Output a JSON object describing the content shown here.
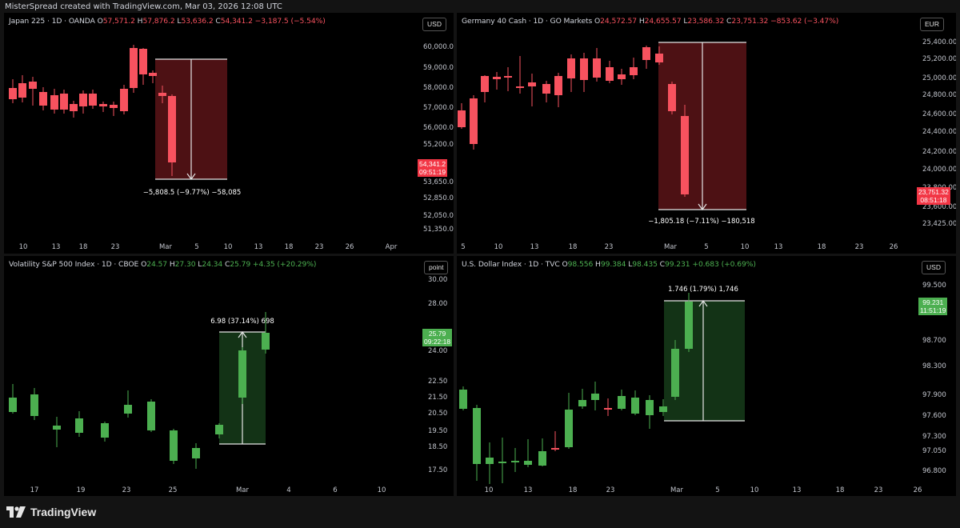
{
  "header": {
    "caption": "MisterSpread created with TradingView.com, Mar 03, 2026 12:08 UTC"
  },
  "footer": {
    "brand": "TradingView",
    "logo_icon": "tradingview-logo-icon"
  },
  "colors": {
    "up": "#4caf50",
    "down": "#f7525f",
    "bg": "#000000",
    "short_zone": "#5a1418",
    "long_zone": "#163c1a"
  },
  "panels": [
    {
      "symbol": "Japan 225 · 1D · OANDA",
      "ohlc": [
        {
          "k": "O",
          "v": "57,571.2",
          "c": "neg"
        },
        {
          "k": "H",
          "v": "57,876.2",
          "c": "neg"
        },
        {
          "k": "L",
          "v": "53,636.2",
          "c": "neg"
        },
        {
          "k": "C",
          "v": "54,341.2",
          "c": "neg"
        }
      ],
      "change": "−3,187.5 (−5.54%)",
      "change_class": "neg",
      "currency": "USD",
      "last_price": "54,341.2",
      "countdown": "09:51:19",
      "y_ticks": [
        "60,000.0",
        "59,000.0",
        "58,000.0",
        "57,000.0",
        "56,000.0",
        "55,200.0",
        "53,650.0",
        "52,850.0",
        "52,050.0",
        "51,350.0"
      ],
      "x_ticks": [
        "10",
        "13",
        "18",
        "23",
        "Mar",
        "5",
        "10",
        "13",
        "18",
        "23",
        "26",
        "Apr"
      ],
      "measure_label": "−5,808.5 (−9.77%) −58,085"
    },
    {
      "symbol": "Germany 40 Cash · 1D · GO Markets",
      "ohlc": [
        {
          "k": "O",
          "v": "24,572.57",
          "c": "neg"
        },
        {
          "k": "H",
          "v": "24,655.57",
          "c": "neg"
        },
        {
          "k": "L",
          "v": "23,586.32",
          "c": "neg"
        },
        {
          "k": "C",
          "v": "23,751.32",
          "c": "neg"
        }
      ],
      "change": "−853.62 (−3.47%)",
      "change_class": "neg",
      "currency": "EUR",
      "last_price": "23,751.32",
      "countdown": "08:51:18",
      "y_ticks": [
        "25,400.00",
        "25,200.00",
        "25,000.00",
        "24,800.00",
        "24,600.00",
        "24,400.00",
        "24,200.00",
        "24,000.00",
        "23,800.00",
        "23,600.00",
        "23,425.00"
      ],
      "x_ticks": [
        "5",
        "10",
        "13",
        "18",
        "23",
        "Mar",
        "5",
        "10",
        "13",
        "18",
        "23",
        "26"
      ],
      "measure_label": "−1,805.18 (−7.11%) −180,518"
    },
    {
      "symbol": "Volatility S&P 500 Index · 1D · CBOE",
      "ohlc": [
        {
          "k": "O",
          "v": "24.57",
          "c": "pos"
        },
        {
          "k": "H",
          "v": "27.30",
          "c": "pos"
        },
        {
          "k": "L",
          "v": "24.34",
          "c": "pos"
        },
        {
          "k": "C",
          "v": "25.79",
          "c": "pos"
        }
      ],
      "change": "+4.35 (+20.29%)",
      "change_class": "pos",
      "currency": "point",
      "last_price": "25.79",
      "countdown": "09:22:18",
      "y_ticks": [
        "30.00",
        "28.00",
        "24.00",
        "22.50",
        "21.50",
        "20.50",
        "19.50",
        "18.50",
        "17.50"
      ],
      "x_ticks": [
        "17",
        "19",
        "23",
        "25",
        "Mar",
        "4",
        "6",
        "10"
      ],
      "measure_label": "6.98 (37.14%) 698"
    },
    {
      "symbol": "U.S. Dollar Index · 1D · TVC",
      "ohlc": [
        {
          "k": "O",
          "v": "98.556",
          "c": "pos"
        },
        {
          "k": "H",
          "v": "99.384",
          "c": "pos"
        },
        {
          "k": "L",
          "v": "98.435",
          "c": "pos"
        },
        {
          "k": "C",
          "v": "99.231",
          "c": "pos"
        }
      ],
      "change": "+0.683 (+0.69%)",
      "change_class": "pos",
      "currency": "USD",
      "last_price": "99.231",
      "countdown": "11:51:19",
      "y_ticks": [
        "99.500",
        "98.700",
        "98.300",
        "97.900",
        "97.600",
        "97.300",
        "97.050",
        "96.800"
      ],
      "x_ticks": [
        "10",
        "13",
        "18",
        "23",
        "Mar",
        "5",
        "10",
        "13",
        "18",
        "23",
        "26"
      ],
      "measure_label": "1.746 (1.79%) 1,746"
    }
  ]
}
